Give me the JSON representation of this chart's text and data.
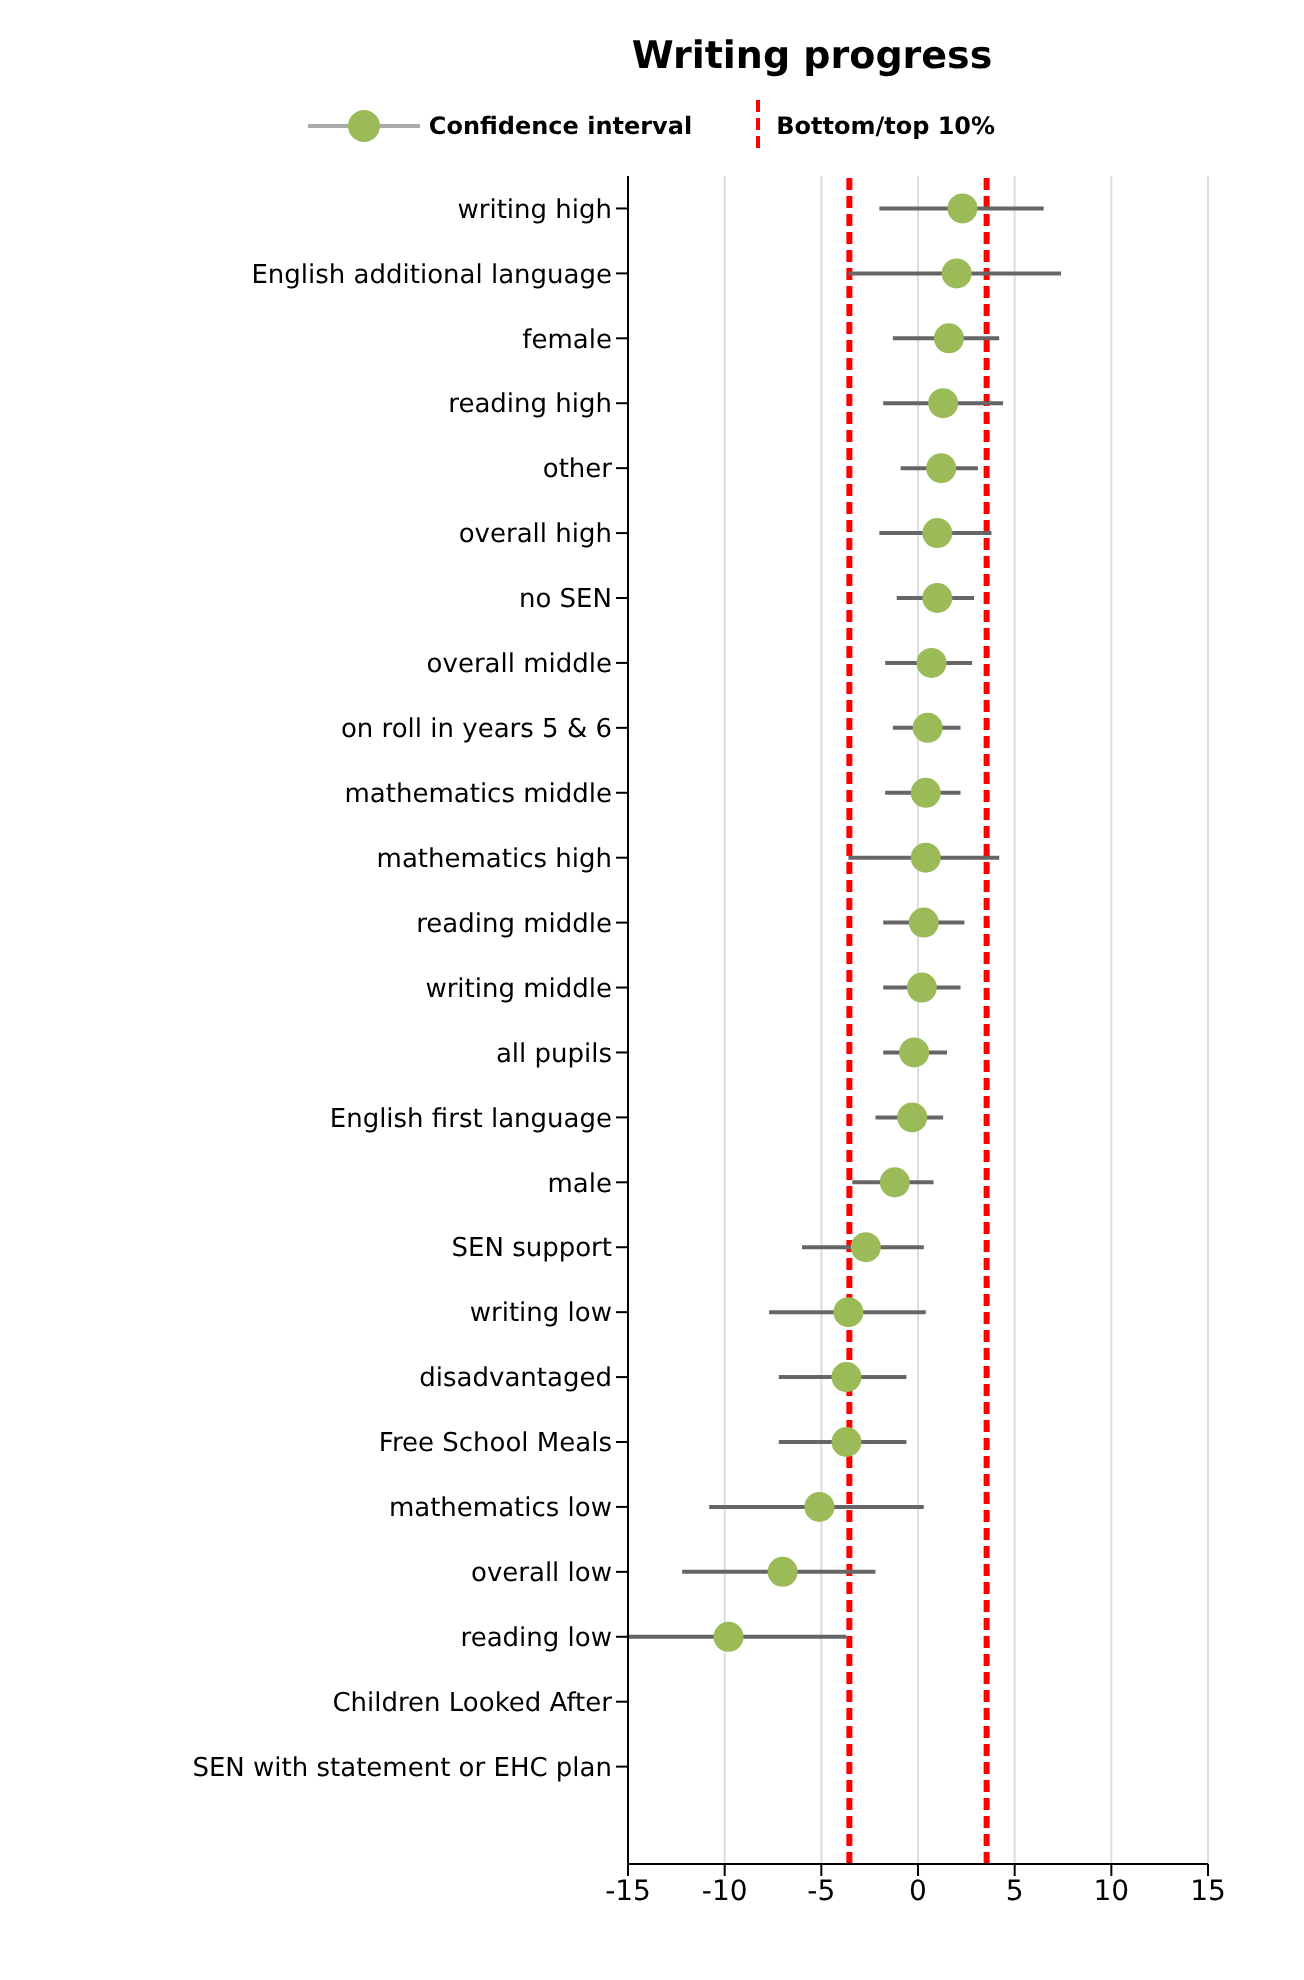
{
  "chart_data": {
    "type": "scatter",
    "title": "Writing progress",
    "categories": [
      "writing high",
      "English additional language",
      "female",
      "reading high",
      "other",
      "overall high",
      "no SEN",
      "overall middle",
      "on roll in years 5 & 6",
      "mathematics middle",
      "mathematics high",
      "reading middle",
      "writing middle",
      "all pupils",
      "English first language",
      "male",
      "SEN support",
      "writing low",
      "disadvantaged",
      "Free School Meals",
      "mathematics low",
      "overall low",
      "reading low",
      "Children Looked After",
      "SEN with statement or EHC plan"
    ],
    "orientation": "horizontal",
    "series": [
      {
        "name": "Confidence interval",
        "color": "#9bbb59",
        "values": [
          2.3,
          2.0,
          1.6,
          1.3,
          1.2,
          1.0,
          1.0,
          0.7,
          0.5,
          0.4,
          0.4,
          0.3,
          0.2,
          -0.2,
          -0.3,
          -1.2,
          -2.7,
          -3.6,
          -3.7,
          -3.7,
          -5.1,
          -7.0,
          -9.8,
          null,
          null
        ],
        "errors": [
          [
            -2.0,
            6.5
          ],
          [
            -3.6,
            7.4
          ],
          [
            -1.3,
            4.2
          ],
          [
            -1.8,
            4.4
          ],
          [
            -0.9,
            3.1
          ],
          [
            -2.0,
            3.8
          ],
          [
            -1.1,
            2.9
          ],
          [
            -1.7,
            2.8
          ],
          [
            -1.3,
            2.2
          ],
          [
            -1.7,
            2.2
          ],
          [
            -3.6,
            4.2
          ],
          [
            -1.8,
            2.4
          ],
          [
            -1.8,
            2.2
          ],
          [
            -1.8,
            1.5
          ],
          [
            -2.2,
            1.3
          ],
          [
            -3.4,
            0.8
          ],
          [
            -6.0,
            0.3
          ],
          [
            -7.7,
            0.4
          ],
          [
            -7.2,
            -0.6
          ],
          [
            -7.2,
            -0.6
          ],
          [
            -10.8,
            0.3
          ],
          [
            -12.2,
            -2.2
          ],
          [
            -15.0,
            -3.7
          ],
          null,
          null
        ]
      }
    ],
    "xlim": [
      -15,
      15
    ],
    "xticks": [
      -15,
      -10,
      -5,
      0,
      5,
      10,
      15
    ],
    "ref_lines": [
      {
        "axis": "x",
        "value": -3.55,
        "label": "Bottom/top 10%",
        "color": "#ff0000",
        "line_style": "dashed"
      },
      {
        "axis": "x",
        "value": 3.55,
        "color": "#ff0000",
        "line_style": "dashed"
      }
    ],
    "grid": "x",
    "legend": "top",
    "marker": "circle"
  }
}
